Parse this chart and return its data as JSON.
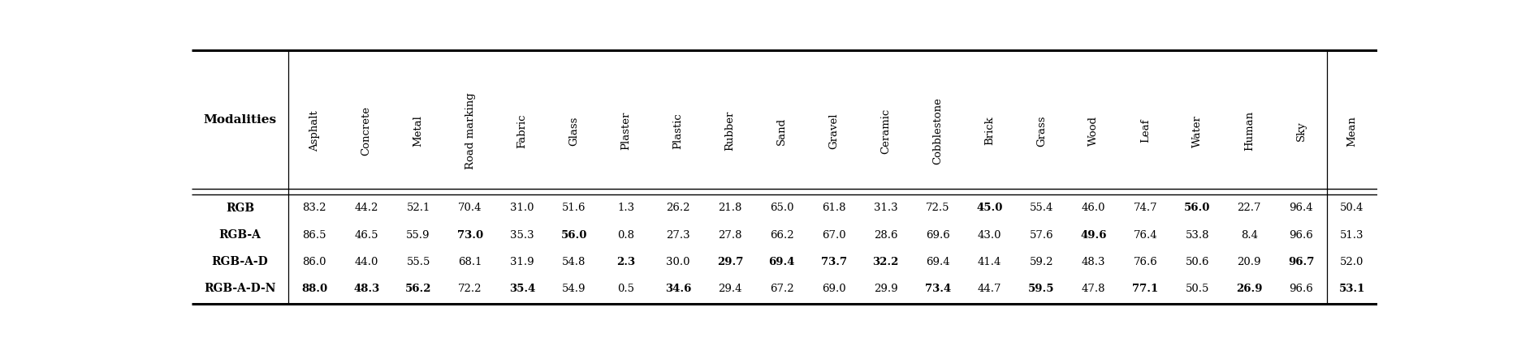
{
  "col_headers": [
    "Modalities",
    "Asphalt",
    "Concrete",
    "Metal",
    "Road marking",
    "Fabric",
    "Glass",
    "Plaster",
    "Plastic",
    "Rubber",
    "Sand",
    "Gravel",
    "Ceramic",
    "Cobblestone",
    "Brick",
    "Grass",
    "Wood",
    "Leaf",
    "Water",
    "Human",
    "Sky",
    "Mean"
  ],
  "rows": [
    {
      "name": "RGB",
      "values": [
        83.2,
        44.2,
        52.1,
        70.4,
        31.0,
        51.6,
        1.3,
        26.2,
        21.8,
        65.0,
        61.8,
        31.3,
        72.5,
        45.0,
        55.4,
        46.0,
        74.7,
        56.0,
        22.7,
        96.4,
        50.4
      ],
      "bold": [
        false,
        false,
        false,
        false,
        false,
        false,
        false,
        false,
        false,
        false,
        false,
        false,
        false,
        true,
        false,
        false,
        false,
        true,
        false,
        false,
        false
      ]
    },
    {
      "name": "RGB-A",
      "values": [
        86.5,
        46.5,
        55.9,
        73.0,
        35.3,
        56.0,
        0.8,
        27.3,
        27.8,
        66.2,
        67.0,
        28.6,
        69.6,
        43.0,
        57.6,
        49.6,
        76.4,
        53.8,
        8.4,
        96.6,
        51.3
      ],
      "bold": [
        false,
        false,
        false,
        true,
        false,
        true,
        false,
        false,
        false,
        false,
        false,
        false,
        false,
        false,
        false,
        true,
        false,
        false,
        false,
        false,
        false
      ]
    },
    {
      "name": "RGB-A-D",
      "values": [
        86.0,
        44.0,
        55.5,
        68.1,
        31.9,
        54.8,
        2.3,
        30.0,
        29.7,
        69.4,
        73.7,
        32.2,
        69.4,
        41.4,
        59.2,
        48.3,
        76.6,
        50.6,
        20.9,
        96.7,
        52.0
      ],
      "bold": [
        false,
        false,
        false,
        false,
        false,
        false,
        true,
        false,
        true,
        true,
        true,
        true,
        false,
        false,
        false,
        false,
        false,
        false,
        false,
        true,
        false
      ]
    },
    {
      "name": "RGB-A-D-N",
      "values": [
        88.0,
        48.3,
        56.2,
        72.2,
        35.4,
        54.9,
        0.5,
        34.6,
        29.4,
        67.2,
        69.0,
        29.9,
        73.4,
        44.7,
        59.5,
        47.8,
        77.1,
        50.5,
        26.9,
        96.6,
        53.1
      ],
      "bold": [
        true,
        true,
        true,
        false,
        true,
        false,
        false,
        true,
        false,
        false,
        false,
        false,
        true,
        false,
        true,
        false,
        true,
        false,
        true,
        false,
        true
      ]
    }
  ],
  "figsize": [
    18.84,
    4.32
  ],
  "dpi": 100
}
